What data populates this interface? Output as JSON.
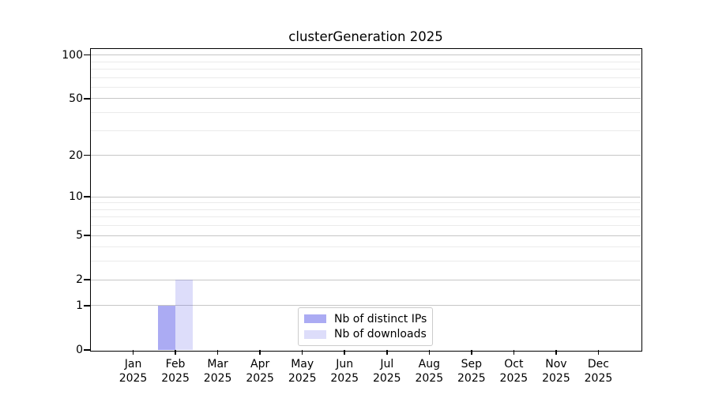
{
  "chart_data": {
    "type": "bar",
    "title": "clusterGeneration 2025",
    "months": [
      "Jan",
      "Feb",
      "Mar",
      "Apr",
      "May",
      "Jun",
      "Jul",
      "Aug",
      "Sep",
      "Oct",
      "Nov",
      "Dec"
    ],
    "year_label": "2025",
    "series": [
      {
        "name": "Nb of distinct IPs",
        "fill": "#6666ea",
        "alpha": 0.55,
        "values": [
          0,
          1,
          0,
          0,
          0,
          0,
          0,
          0,
          0,
          0,
          0,
          0
        ]
      },
      {
        "name": "Nb of downloads",
        "fill": "#6666ea",
        "alpha": 0.22,
        "values": [
          0,
          2,
          0,
          0,
          0,
          0,
          0,
          0,
          0,
          0,
          0,
          0
        ]
      }
    ],
    "y_ticks": [
      0,
      1,
      2,
      5,
      10,
      20,
      50,
      100
    ],
    "y_minor_ticks": [
      3,
      4,
      6,
      7,
      8,
      9,
      30,
      40,
      60,
      70,
      80,
      90
    ],
    "y_scale": "log1p",
    "y_max": 110,
    "ylim": [
      0,
      110
    ],
    "grid": true,
    "legend_position": "lower center",
    "colors": {
      "major_grid": "#c6c6c6",
      "minor_grid": "#ebebeb",
      "spine": "#000000",
      "text": "#000000",
      "background": "#ffffff"
    }
  }
}
